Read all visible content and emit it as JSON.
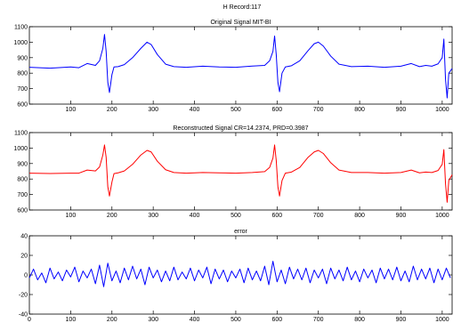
{
  "figure": {
    "title": "H Record:117"
  },
  "chart_data": [
    {
      "type": "line",
      "title": "Original Signal MIT-BI",
      "xlabel": "",
      "ylabel": "",
      "xlim": [
        0,
        1024
      ],
      "ylim": [
        600,
        1100
      ],
      "xticks": [
        100,
        200,
        300,
        400,
        500,
        600,
        700,
        800,
        900,
        1000
      ],
      "yticks": [
        600,
        700,
        800,
        900,
        1000,
        1100
      ],
      "grid": false,
      "series": [
        {
          "name": "",
          "color": "#0000ff",
          "x": [
            0,
            50,
            100,
            120,
            140,
            160,
            170,
            178,
            182,
            186,
            190,
            194,
            200,
            205,
            215,
            230,
            250,
            270,
            285,
            295,
            310,
            330,
            350,
            380,
            420,
            460,
            500,
            540,
            570,
            582,
            590,
            594,
            598,
            602,
            606,
            612,
            620,
            635,
            655,
            675,
            690,
            700,
            712,
            730,
            750,
            780,
            820,
            860,
            900,
            925,
            945,
            960,
            975,
            990,
            1000,
            1004,
            1008,
            1012,
            1016,
            1024
          ],
          "y": [
            838,
            832,
            840,
            835,
            862,
            850,
            880,
            960,
            1050,
            940,
            740,
            675,
            790,
            840,
            842,
            855,
            900,
            960,
            1000,
            985,
            920,
            858,
            842,
            838,
            845,
            840,
            838,
            846,
            850,
            880,
            940,
            1040,
            920,
            740,
            680,
            800,
            840,
            848,
            880,
            945,
            990,
            1000,
            975,
            910,
            858,
            842,
            845,
            838,
            845,
            862,
            842,
            850,
            845,
            860,
            900,
            1020,
            760,
            640,
            800,
            830
          ]
        }
      ]
    },
    {
      "type": "line",
      "title": "Reconstructed Signal CR=14.2374, PRD=0.3987",
      "xlabel": "",
      "ylabel": "",
      "xlim": [
        0,
        1024
      ],
      "ylim": [
        600,
        1100
      ],
      "xticks": [
        100,
        200,
        300,
        400,
        500,
        600,
        700,
        800,
        900,
        1000
      ],
      "yticks": [
        600,
        700,
        800,
        900,
        1000,
        1100
      ],
      "grid": false,
      "series": [
        {
          "name": "",
          "color": "#ff0000",
          "x": [
            0,
            50,
            100,
            120,
            140,
            160,
            170,
            178,
            182,
            186,
            190,
            194,
            200,
            205,
            215,
            230,
            250,
            270,
            285,
            295,
            310,
            330,
            350,
            380,
            420,
            460,
            500,
            540,
            570,
            582,
            590,
            594,
            598,
            602,
            606,
            612,
            620,
            635,
            655,
            675,
            690,
            700,
            712,
            730,
            750,
            780,
            820,
            860,
            900,
            925,
            945,
            960,
            975,
            990,
            1000,
            1004,
            1008,
            1012,
            1016,
            1024
          ],
          "y": [
            838,
            836,
            838,
            838,
            858,
            852,
            878,
            955,
            1020,
            940,
            750,
            690,
            780,
            835,
            840,
            852,
            895,
            955,
            985,
            975,
            915,
            860,
            842,
            838,
            842,
            840,
            838,
            842,
            848,
            875,
            935,
            1020,
            920,
            750,
            690,
            790,
            838,
            845,
            875,
            940,
            975,
            985,
            965,
            905,
            858,
            842,
            842,
            838,
            842,
            858,
            840,
            845,
            842,
            855,
            895,
            990,
            770,
            650,
            790,
            828
          ]
        }
      ]
    },
    {
      "type": "line",
      "title": "error",
      "xlabel": "",
      "ylabel": "",
      "xlim": [
        0,
        1024
      ],
      "ylim": [
        -40,
        40
      ],
      "xticks": [
        0,
        100,
        200,
        300,
        400,
        500,
        600,
        700,
        800,
        900,
        1000
      ],
      "yticks": [
        -40,
        -20,
        0,
        20,
        40
      ],
      "grid": false,
      "series": [
        {
          "name": "",
          "color": "#0000ff",
          "x": [
            0,
            10,
            20,
            30,
            40,
            50,
            60,
            70,
            80,
            90,
            100,
            110,
            120,
            130,
            140,
            150,
            160,
            170,
            180,
            190,
            200,
            210,
            220,
            230,
            240,
            250,
            260,
            270,
            280,
            290,
            300,
            310,
            320,
            330,
            340,
            350,
            360,
            370,
            380,
            390,
            400,
            410,
            420,
            430,
            440,
            450,
            460,
            470,
            480,
            490,
            500,
            510,
            520,
            530,
            540,
            550,
            560,
            570,
            580,
            590,
            600,
            610,
            620,
            630,
            640,
            650,
            660,
            670,
            680,
            690,
            700,
            710,
            720,
            730,
            740,
            750,
            760,
            770,
            780,
            790,
            800,
            810,
            820,
            830,
            840,
            850,
            860,
            870,
            880,
            890,
            900,
            910,
            920,
            930,
            940,
            950,
            960,
            970,
            980,
            990,
            1000,
            1010,
            1020
          ],
          "y": [
            -3,
            6,
            -5,
            2,
            -8,
            7,
            -4,
            3,
            -6,
            5,
            -2,
            8,
            -7,
            4,
            -3,
            6,
            -9,
            10,
            -12,
            12,
            -6,
            4,
            -8,
            7,
            -5,
            9,
            -4,
            6,
            -10,
            8,
            -3,
            5,
            -7,
            4,
            -6,
            8,
            -5,
            3,
            -4,
            7,
            -6,
            5,
            -3,
            8,
            -9,
            6,
            -4,
            5,
            -7,
            4,
            -3,
            6,
            -8,
            7,
            -5,
            4,
            -6,
            9,
            -10,
            14,
            -7,
            5,
            -9,
            8,
            -4,
            6,
            -5,
            7,
            -8,
            5,
            -3,
            6,
            -9,
            7,
            -4,
            5,
            -6,
            8,
            -5,
            4,
            -7,
            6,
            -3,
            5,
            -8,
            7,
            -4,
            6,
            -5,
            8,
            -6,
            4,
            -7,
            9,
            -5,
            6,
            -4,
            7,
            -8,
            6,
            -5,
            7,
            -3
          ]
        }
      ]
    }
  ]
}
